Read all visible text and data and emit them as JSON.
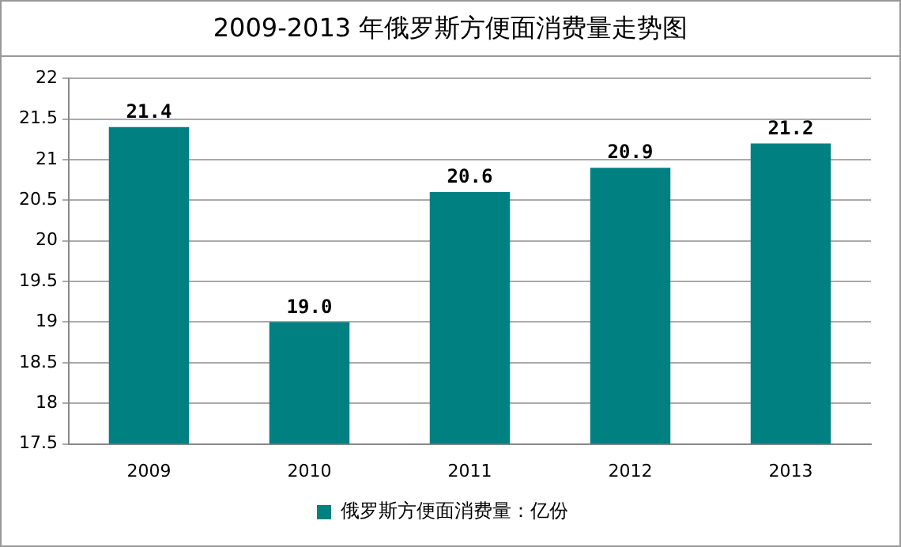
{
  "chart_data": {
    "type": "bar",
    "title": "2009-2013 年俄罗斯方便面消费量走势图",
    "categories": [
      "2009",
      "2010",
      "2011",
      "2012",
      "2013"
    ],
    "series": [
      {
        "name": "俄罗斯方便面消费量：亿份",
        "color": "#008080",
        "values": [
          21.4,
          19.0,
          20.6,
          20.9,
          21.2
        ]
      }
    ],
    "value_labels": [
      "21.4",
      "19.0",
      "20.6",
      "20.9",
      "21.2"
    ],
    "ylim": [
      17.5,
      22
    ],
    "yticks": [
      17.5,
      18,
      18.5,
      19,
      19.5,
      20,
      20.5,
      21,
      21.5,
      22
    ],
    "grid": "y",
    "legend": "bottom"
  }
}
